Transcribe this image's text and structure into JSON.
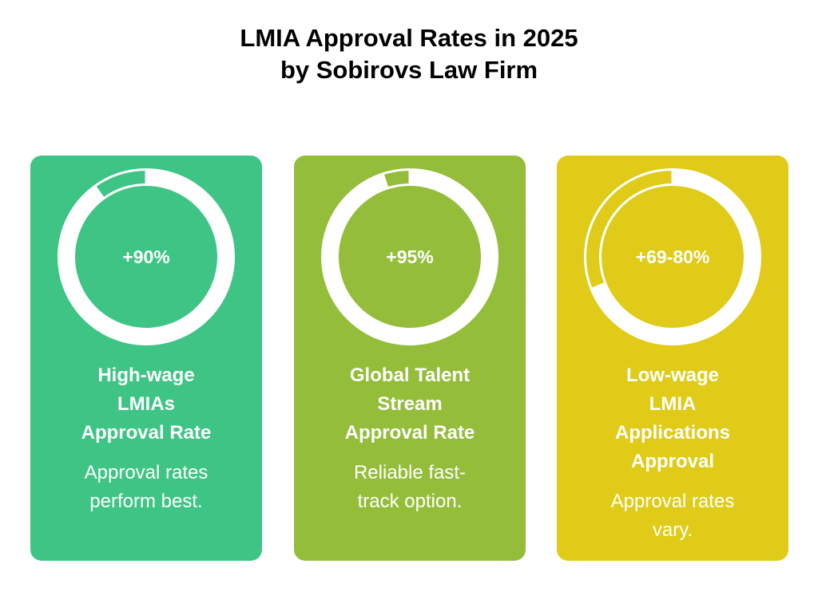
{
  "title_line1": "LMIA Approval Rates in 2025",
  "title_line2": "by Sobirovs Law Firm",
  "chart_data": {
    "type": "donut",
    "title": "LMIA Approval Rates in 2025 by Sobirovs Law Firm",
    "series": [
      {
        "name": "High-wage LMIAs Approval Rate",
        "label": "+90%",
        "value": 90,
        "color": "#3ec585"
      },
      {
        "name": "Global Talent Stream Approval Rate",
        "label": "+95%",
        "value": 95,
        "color": "#94bd3a"
      },
      {
        "name": "Low-wage LMIA Applications Approval",
        "label": "+69-80%",
        "value": 69,
        "value_max": 80,
        "color": "#e0cb18"
      }
    ]
  },
  "cards": [
    {
      "value": "+90%",
      "heading": [
        "High-wage",
        "LMIAs",
        "Approval Rate"
      ],
      "desc": [
        "Approval rates",
        "perform best."
      ]
    },
    {
      "value": "+95%",
      "heading": [
        "Global Talent",
        "Stream",
        "Approval Rate"
      ],
      "desc": [
        "Reliable fast-",
        "track option."
      ]
    },
    {
      "value": "+69-80%",
      "heading": [
        "Low-wage",
        "LMIA",
        "Applications",
        "Approval"
      ],
      "desc": [
        "Approval rates",
        "vary."
      ]
    }
  ]
}
